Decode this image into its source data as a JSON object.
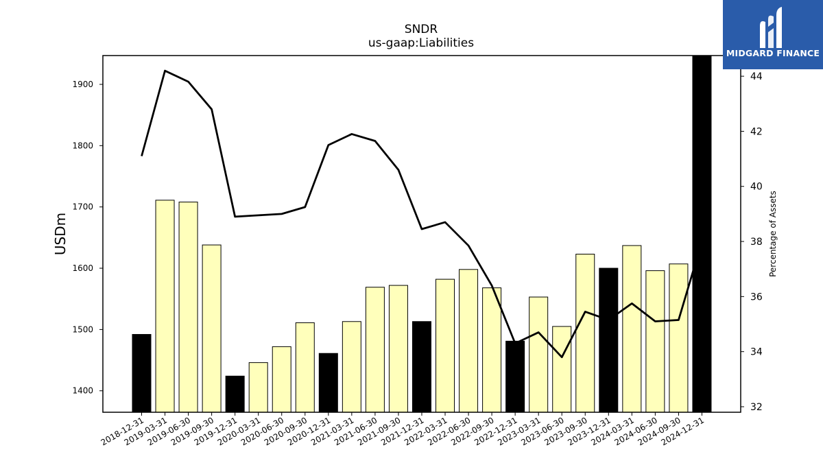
{
  "chart_data": {
    "type": "bar",
    "title": "SNDR",
    "subtitle": "us-gaap:Liabilities",
    "ylabel": "USDm",
    "y2label": "Percentage of Assets",
    "ylim": [
      1365,
      1947
    ],
    "y2lim": [
      31.8,
      44.75
    ],
    "yticks": [
      1400,
      1500,
      1600,
      1700,
      1800,
      1900
    ],
    "y2ticks": [
      32,
      34,
      36,
      38,
      40,
      42,
      44
    ],
    "categories": [
      "2018-12-31",
      "2019-03-31",
      "2019-06-30",
      "2019-09-30",
      "2019-12-31",
      "2020-03-31",
      "2020-06-30",
      "2020-09-30",
      "2020-12-31",
      "2021-03-31",
      "2021-06-30",
      "2021-09-30",
      "2021-12-31",
      "2022-03-31",
      "2022-06-30",
      "2022-09-30",
      "2022-12-31",
      "2023-03-31",
      "2023-06-30",
      "2023-09-30",
      "2023-12-31",
      "2024-03-31",
      "2024-06-30",
      "2024-09-30",
      "2024-12-31"
    ],
    "series": [
      {
        "type": "bar",
        "values": [
          1492,
          1711,
          1708,
          1638,
          1424,
          1446,
          1472,
          1511,
          1461,
          1513,
          1569,
          1572,
          1513,
          1582,
          1598,
          1568,
          1481,
          1553,
          1505,
          1623,
          1600,
          1637,
          1596,
          1607,
          1947
        ],
        "colors": [
          "#000000",
          "#ffffbb",
          "#ffffbb",
          "#ffffbb",
          "#000000",
          "#ffffbb",
          "#ffffbb",
          "#ffffbb",
          "#000000",
          "#ffffbb",
          "#ffffbb",
          "#ffffbb",
          "#000000",
          "#ffffbb",
          "#ffffbb",
          "#ffffbb",
          "#000000",
          "#ffffbb",
          "#ffffbb",
          "#ffffbb",
          "#000000",
          "#ffffbb",
          "#ffffbb",
          "#ffffbb",
          "#000000"
        ]
      },
      {
        "type": "line",
        "axis": "right",
        "color": "#000000",
        "values": [
          41.1,
          44.2,
          43.8,
          42.8,
          38.9,
          38.95,
          39.0,
          39.25,
          41.5,
          41.9,
          41.65,
          40.6,
          38.45,
          38.7,
          37.85,
          36.4,
          34.3,
          34.7,
          33.8,
          35.45,
          35.15,
          35.75,
          35.1,
          35.15,
          38.0
        ]
      }
    ]
  },
  "logo": {
    "text": "MIDGARD FINANCE",
    "bg_color": "#2a5caa"
  }
}
